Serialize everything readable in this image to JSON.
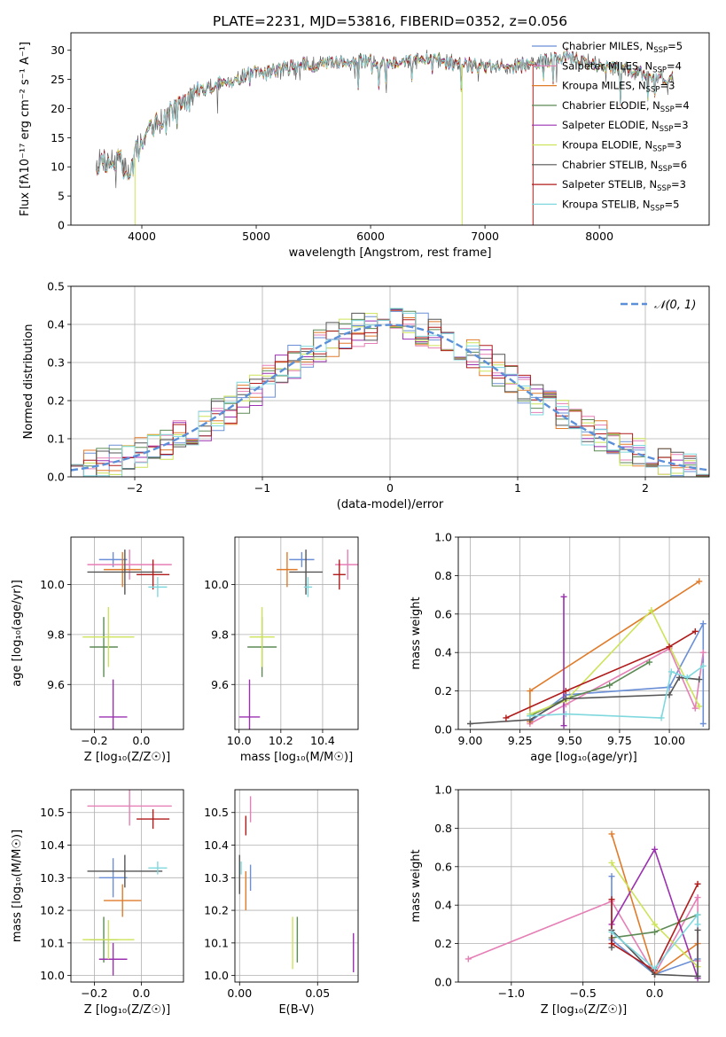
{
  "figure": {
    "title": "PLATE=2231, MJD=53816, FIBERID=0352, z=0.056"
  },
  "colors": {
    "Chabrier MILES": "#6a8fd6",
    "Salpeter MILES": "#e57fb5",
    "Kroupa MILES": "#e07b2a",
    "Chabrier ELODIE": "#5d8a55",
    "Salpeter ELODIE": "#9b30b0",
    "Kroupa ELODIE": "#cde35a",
    "Chabrier STELIB": "#555555",
    "Salpeter STELIB": "#b01a1a",
    "Kroupa STELIB": "#7fd8de"
  },
  "chart_data": [
    {
      "id": "spectrum",
      "type": "line",
      "xlabel": "wavelength [Angstrom, rest frame]",
      "ylabel": "Flux [fλ10⁻¹⁷ erg cm⁻² s⁻¹ A⁻¹]",
      "xlim": [
        3380,
        8960
      ],
      "ylim": [
        0,
        33
      ],
      "xticks": [
        4000,
        5000,
        6000,
        7000,
        8000
      ],
      "yticks": [
        0,
        5,
        10,
        15,
        20,
        25,
        30
      ],
      "continuum_anchors": [
        [
          3600,
          11
        ],
        [
          3800,
          11
        ],
        [
          3900,
          9
        ],
        [
          3980,
          14
        ],
        [
          4100,
          17
        ],
        [
          4300,
          20
        ],
        [
          4500,
          23
        ],
        [
          4800,
          25
        ],
        [
          5000,
          26
        ],
        [
          5300,
          27
        ],
        [
          5600,
          28
        ],
        [
          5900,
          28
        ],
        [
          6200,
          28
        ],
        [
          6500,
          28.5
        ],
        [
          6800,
          27.5
        ],
        [
          7100,
          27
        ],
        [
          7400,
          27.5
        ],
        [
          7700,
          29
        ],
        [
          7900,
          28
        ],
        [
          8100,
          27
        ],
        [
          8400,
          26
        ],
        [
          8650,
          25
        ]
      ],
      "legend": [
        {
          "name": "Chabrier MILES",
          "nssp": "5"
        },
        {
          "name": "Salpeter MILES",
          "nssp": "4"
        },
        {
          "name": "Kroupa MILES",
          "nssp": "3"
        },
        {
          "name": "Chabrier ELODIE",
          "nssp": "4"
        },
        {
          "name": "Salpeter ELODIE",
          "nssp": "3"
        },
        {
          "name": "Kroupa ELODIE",
          "nssp": "3"
        },
        {
          "name": "Chabrier STELIB",
          "nssp": "6"
        },
        {
          "name": "Salpeter STELIB",
          "nssp": "3"
        },
        {
          "name": "Kroupa STELIB",
          "nssp": "5"
        }
      ]
    },
    {
      "id": "residuals",
      "type": "line",
      "xlabel": "(data-model)/error",
      "ylabel": "Normed distribution",
      "xlim": [
        -2.5,
        2.5
      ],
      "ylim": [
        0,
        0.5
      ],
      "xticks": [
        -2,
        -1,
        0,
        1,
        2
      ],
      "yticks": [
        0.0,
        0.1,
        0.2,
        0.3,
        0.4,
        0.5
      ],
      "bin_width": 0.1,
      "gaussian_label": "𝒩(0, 1)"
    },
    {
      "id": "age_vs_Z",
      "type": "scatter",
      "xlabel": "Z [log₁₀(Z/Z☉)]",
      "ylabel": "age  [log₁₀(age/yr)]",
      "xlim": [
        -0.3,
        0.18
      ],
      "ylim": [
        9.42,
        10.19
      ],
      "xticks": [
        -0.2,
        0.0
      ],
      "yticks": [
        9.6,
        9.8,
        10.0
      ],
      "points": [
        {
          "model": "Chabrier MILES",
          "x": -0.12,
          "xerr": 0.06,
          "y": 10.1,
          "yerr": 0.03
        },
        {
          "model": "Salpeter MILES",
          "x": -0.05,
          "xerr": 0.18,
          "y": 10.08,
          "yerr": 0.06
        },
        {
          "model": "Kroupa MILES",
          "x": -0.08,
          "xerr": 0.08,
          "y": 10.06,
          "yerr": 0.07
        },
        {
          "model": "Chabrier ELODIE",
          "x": -0.16,
          "xerr": 0.06,
          "y": 9.75,
          "yerr": 0.12
        },
        {
          "model": "Salpeter ELODIE",
          "x": -0.12,
          "xerr": 0.06,
          "y": 9.47,
          "yerr": 0.15
        },
        {
          "model": "Kroupa ELODIE",
          "x": -0.14,
          "xerr": 0.11,
          "y": 9.79,
          "yerr": 0.12
        },
        {
          "model": "Chabrier STELIB",
          "x": -0.07,
          "xerr": 0.16,
          "y": 10.05,
          "yerr": 0.09
        },
        {
          "model": "Salpeter STELIB",
          "x": 0.05,
          "xerr": 0.07,
          "y": 10.04,
          "yerr": 0.06
        },
        {
          "model": "Kroupa STELIB",
          "x": 0.07,
          "xerr": 0.04,
          "y": 9.99,
          "yerr": 0.04
        }
      ]
    },
    {
      "id": "age_vs_mass",
      "type": "scatter",
      "xlabel": "mass [log₁₀(M/M☉)]",
      "xlim": [
        9.98,
        10.57
      ],
      "ylim": [
        9.42,
        10.19
      ],
      "xticks": [
        10.0,
        10.2,
        10.4
      ],
      "yticks": [
        9.6,
        9.8,
        10.0
      ],
      "points": [
        {
          "model": "Chabrier MILES",
          "x": 10.3,
          "xerr": 0.06,
          "y": 10.1,
          "yerr": 0.03
        },
        {
          "model": "Salpeter MILES",
          "x": 10.52,
          "xerr": 0.06,
          "y": 10.08,
          "yerr": 0.06
        },
        {
          "model": "Kroupa MILES",
          "x": 10.23,
          "xerr": 0.05,
          "y": 10.06,
          "yerr": 0.07
        },
        {
          "model": "Chabrier ELODIE",
          "x": 10.11,
          "xerr": 0.07,
          "y": 9.75,
          "yerr": 0.12
        },
        {
          "model": "Salpeter ELODIE",
          "x": 10.05,
          "xerr": 0.05,
          "y": 9.47,
          "yerr": 0.15
        },
        {
          "model": "Kroupa ELODIE",
          "x": 10.11,
          "xerr": 0.06,
          "y": 9.79,
          "yerr": 0.12
        },
        {
          "model": "Chabrier STELIB",
          "x": 10.32,
          "xerr": 0.08,
          "y": 10.05,
          "yerr": 0.09
        },
        {
          "model": "Salpeter STELIB",
          "x": 10.48,
          "xerr": 0.03,
          "y": 10.04,
          "yerr": 0.06
        },
        {
          "model": "Kroupa STELIB",
          "x": 10.33,
          "xerr": 0.02,
          "y": 9.99,
          "yerr": 0.04
        }
      ]
    },
    {
      "id": "weight_vs_age",
      "type": "line",
      "xlabel": "age  [log₁₀(age/yr)]",
      "ylabel": "mass weight",
      "xlim": [
        8.94,
        10.2
      ],
      "ylim": [
        0,
        1
      ],
      "xticks": [
        9.0,
        9.25,
        9.5,
        9.75,
        10.0
      ],
      "yticks": [
        0.0,
        0.2,
        0.4,
        0.6,
        0.8,
        1.0
      ],
      "series": [
        {
          "model": "Chabrier MILES",
          "x": [
            9.3,
            9.48,
            10.0,
            10.17,
            10.17
          ],
          "y": [
            0.04,
            0.18,
            0.22,
            0.55,
            0.03
          ]
        },
        {
          "model": "Salpeter MILES",
          "x": [
            9.3,
            9.48,
            10.0,
            10.13,
            10.17
          ],
          "y": [
            0.03,
            0.13,
            0.42,
            0.11,
            0.4
          ]
        },
        {
          "model": "Kroupa MILES",
          "x": [
            9.3,
            9.3,
            10.15
          ],
          "y": [
            0.04,
            0.2,
            0.77
          ]
        },
        {
          "model": "Chabrier ELODIE",
          "x": [
            9.3,
            9.48,
            9.7,
            9.9
          ],
          "y": [
            0.07,
            0.16,
            0.23,
            0.35
          ]
        },
        {
          "model": "Salpeter ELODIE",
          "x": [
            9.47,
            9.47
          ],
          "y": [
            0.02,
            0.69
          ]
        },
        {
          "model": "Kroupa ELODIE",
          "x": [
            9.3,
            9.48,
            9.91,
            10.15
          ],
          "y": [
            0.08,
            0.15,
            0.62,
            0.12
          ]
        },
        {
          "model": "Chabrier STELIB",
          "x": [
            9.0,
            9.3,
            9.48,
            10.0,
            10.05,
            10.15
          ],
          "y": [
            0.03,
            0.05,
            0.16,
            0.18,
            0.27,
            0.26
          ]
        },
        {
          "model": "Salpeter STELIB",
          "x": [
            9.18,
            9.48,
            10.0,
            10.13
          ],
          "y": [
            0.06,
            0.2,
            0.43,
            0.51
          ]
        },
        {
          "model": "Kroupa STELIB",
          "x": [
            9.3,
            9.48,
            9.96,
            10.01,
            10.09,
            10.17
          ],
          "y": [
            0.07,
            0.08,
            0.06,
            0.3,
            0.27,
            0.33
          ]
        }
      ]
    },
    {
      "id": "mass_vs_Z",
      "type": "scatter",
      "xlabel": "Z [log₁₀(Z/Z☉)]",
      "ylabel": "mass [log₁₀(M/M☉)]",
      "xlim": [
        -0.3,
        0.18
      ],
      "ylim": [
        9.98,
        10.57
      ],
      "xticks": [
        -0.2,
        0.0
      ],
      "yticks": [
        10.0,
        10.1,
        10.2,
        10.3,
        10.4,
        10.5
      ],
      "points": [
        {
          "model": "Chabrier MILES",
          "x": -0.12,
          "xerr": 0.06,
          "y": 10.3,
          "yerr": 0.06
        },
        {
          "model": "Salpeter MILES",
          "x": -0.05,
          "xerr": 0.18,
          "y": 10.52,
          "yerr": 0.06
        },
        {
          "model": "Kroupa MILES",
          "x": -0.08,
          "xerr": 0.08,
          "y": 10.23,
          "yerr": 0.05
        },
        {
          "model": "Chabrier ELODIE",
          "x": -0.16,
          "xerr": 0.06,
          "y": 10.11,
          "yerr": 0.07
        },
        {
          "model": "Salpeter ELODIE",
          "x": -0.12,
          "xerr": 0.06,
          "y": 10.05,
          "yerr": 0.05
        },
        {
          "model": "Kroupa ELODIE",
          "x": -0.14,
          "xerr": 0.11,
          "y": 10.11,
          "yerr": 0.06
        },
        {
          "model": "Chabrier STELIB",
          "x": -0.07,
          "xerr": 0.16,
          "y": 10.32,
          "yerr": 0.05
        },
        {
          "model": "Salpeter STELIB",
          "x": 0.05,
          "xerr": 0.07,
          "y": 10.48,
          "yerr": 0.03
        },
        {
          "model": "Kroupa STELIB",
          "x": 0.07,
          "xerr": 0.04,
          "y": 10.33,
          "yerr": 0.02
        }
      ]
    },
    {
      "id": "mass_vs_ebv",
      "type": "scatter",
      "xlabel": "E(B-V)",
      "xlim": [
        -0.003,
        0.076
      ],
      "ylim": [
        9.98,
        10.57
      ],
      "xticks": [
        0.0,
        0.05
      ],
      "yticks": [
        10.0,
        10.1,
        10.2,
        10.3,
        10.4,
        10.5
      ],
      "points": [
        {
          "model": "Chabrier MILES",
          "x": 0.007,
          "y": 10.3,
          "yerr": 0.04
        },
        {
          "model": "Salpeter MILES",
          "x": 0.007,
          "y": 10.51,
          "yerr": 0.04
        },
        {
          "model": "Kroupa MILES",
          "x": 0.004,
          "y": 10.26,
          "yerr": 0.06
        },
        {
          "model": "Chabrier ELODIE",
          "x": 0.037,
          "y": 10.11,
          "yerr": 0.07
        },
        {
          "model": "Salpeter ELODIE",
          "x": 0.073,
          "y": 10.07,
          "yerr": 0.06
        },
        {
          "model": "Kroupa ELODIE",
          "x": 0.034,
          "y": 10.1,
          "yerr": 0.08
        },
        {
          "model": "Chabrier STELIB",
          "x": 0.0,
          "y": 10.31,
          "yerr": 0.06
        },
        {
          "model": "Salpeter STELIB",
          "x": 0.004,
          "y": 10.46,
          "yerr": 0.03
        },
        {
          "model": "Kroupa STELIB",
          "x": 0.001,
          "y": 10.33,
          "yerr": 0.02
        }
      ]
    },
    {
      "id": "weight_vs_Z",
      "type": "line",
      "xlabel": "Z [log₁₀(Z/Z☉)]",
      "ylabel": "mass weight",
      "xlim": [
        -1.37,
        0.38
      ],
      "ylim": [
        0,
        1
      ],
      "xticks": [
        -1.0,
        -0.5,
        0.0
      ],
      "yticks": [
        0.0,
        0.2,
        0.4,
        0.6,
        0.8,
        1.0
      ],
      "series": [
        {
          "model": "Chabrier MILES",
          "x": [
            -0.3,
            -0.3,
            0.0,
            0.3,
            0.3
          ],
          "y": [
            0.55,
            0.22,
            0.04,
            0.12,
            0.03
          ]
        },
        {
          "model": "Salpeter MILES",
          "x": [
            -1.3,
            -0.3,
            0.0,
            0.3,
            0.3
          ],
          "y": [
            0.12,
            0.42,
            0.04,
            0.44,
            0.11
          ]
        },
        {
          "model": "Kroupa MILES",
          "x": [
            -0.3,
            0.0,
            0.3
          ],
          "y": [
            0.77,
            0.04,
            0.2
          ]
        },
        {
          "model": "Chabrier ELODIE",
          "x": [
            -0.3,
            0.0,
            0.3
          ],
          "y": [
            0.23,
            0.26,
            0.35
          ]
        },
        {
          "model": "Salpeter ELODIE",
          "x": [
            -0.3,
            0.0,
            0.3
          ],
          "y": [
            0.3,
            0.69,
            0.02
          ]
        },
        {
          "model": "Kroupa ELODIE",
          "x": [
            -0.3,
            0.0,
            0.3
          ],
          "y": [
            0.62,
            0.3,
            0.08
          ]
        },
        {
          "model": "Chabrier STELIB",
          "x": [
            -0.3,
            -0.3,
            0.0,
            0.3,
            0.3
          ],
          "y": [
            0.18,
            0.27,
            0.04,
            0.03,
            0.27
          ]
        },
        {
          "model": "Salpeter STELIB",
          "x": [
            -0.3,
            -0.3,
            0.0,
            0.3
          ],
          "y": [
            0.43,
            0.2,
            0.06,
            0.51
          ]
        },
        {
          "model": "Kroupa STELIB",
          "x": [
            -0.3,
            0.0,
            0.3,
            0.3
          ],
          "y": [
            0.26,
            0.07,
            0.35,
            0.3
          ]
        }
      ]
    }
  ]
}
